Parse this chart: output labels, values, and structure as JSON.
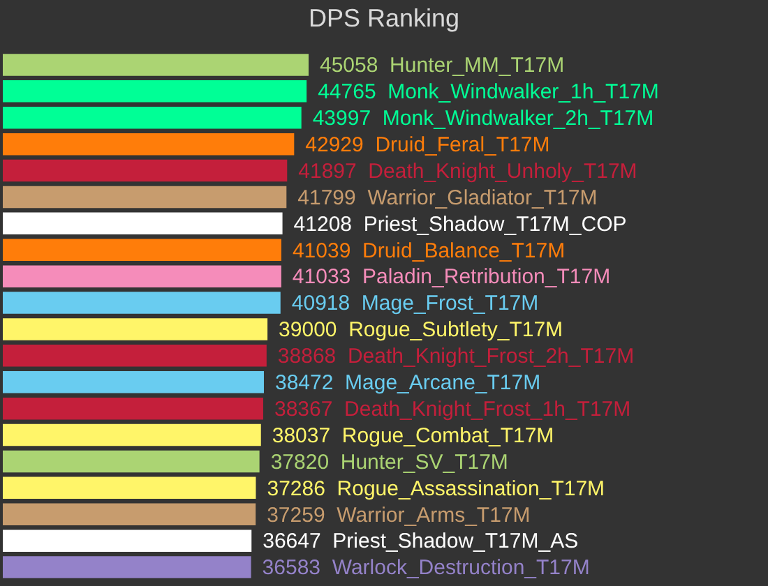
{
  "chart_data": {
    "type": "bar",
    "orientation": "horizontal",
    "title": "DPS Ranking",
    "categories": [
      null,
      null,
      null,
      null,
      null,
      null,
      null,
      null,
      null,
      null,
      null,
      null,
      null,
      null,
      null,
      null,
      null,
      null,
      null,
      null
    ],
    "values": [
      45058,
      44765,
      43997,
      42929,
      41897,
      41799,
      41208,
      41039,
      41033,
      40918,
      39000,
      38868,
      38472,
      38367,
      38037,
      37820,
      37286,
      37259,
      36647,
      36583
    ],
    "value_labels": [
      "45058  Hunter_MM_T17M",
      "44765  Monk_Windwalker_1h_T17M",
      "43997  Monk_Windwalker_2h_T17M",
      "42929  Druid_Feral_T17M",
      "41897  Death_Knight_Unholy_T17M",
      "41799  Warrior_Gladiator_T17M",
      "41208  Priest_Shadow_T17M_COP",
      "41039  Druid_Balance_T17M",
      "41033  Paladin_Retribution_T17M",
      "40918  Mage_Frost_T17M",
      "39000  Rogue_Subtlety_T17M",
      "38868  Death_Knight_Frost_2h_T17M",
      "38472  Mage_Arcane_T17M",
      "38367  Death_Knight_Frost_1h_T17M",
      "38037  Rogue_Combat_T17M",
      "37820  Hunter_SV_T17M",
      "37286  Rogue_Assassination_T17M",
      "37259  Warrior_Arms_T17M",
      "36647  Priest_Shadow_T17M_AS",
      "36583  Warlock_Destruction_T17M"
    ],
    "colors": [
      "#abd473",
      "#00ff96",
      "#00ff96",
      "#ff7d0a",
      "#c41f3b",
      "#c79c6e",
      "#ffffff",
      "#ff7d0a",
      "#f58cba",
      "#69ccf0",
      "#fff569",
      "#c41f3b",
      "#69ccf0",
      "#c41f3b",
      "#fff569",
      "#abd473",
      "#fff569",
      "#c79c6e",
      "#ffffff",
      "#9482c9"
    ],
    "tick_labels": false
  }
}
